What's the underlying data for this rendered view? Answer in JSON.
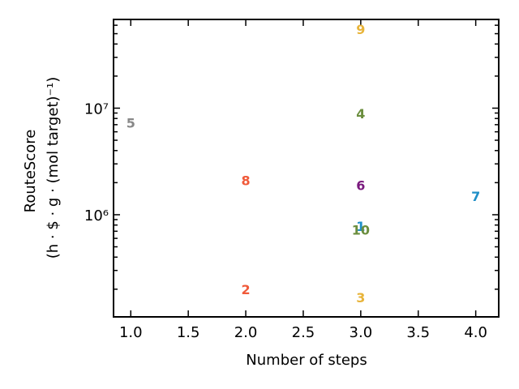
{
  "chart_data": {
    "type": "scatter",
    "title": "",
    "xlabel": "Number of steps",
    "ylabel": "RouteScore",
    "ylabel_line2": "(h · $ · g · (mol target)⁻¹)",
    "xlim": [
      0.85,
      4.2
    ],
    "ylim": [
      110000,
      68000000
    ],
    "yscale": "log",
    "grid": false,
    "x_ticks": [
      1.0,
      1.5,
      2.0,
      2.5,
      3.0,
      3.5,
      4.0
    ],
    "x_tick_labels": [
      "1.0",
      "1.5",
      "2.0",
      "2.5",
      "3.0",
      "3.5",
      "4.0"
    ],
    "y_major_ticks": [
      1000000,
      10000000
    ],
    "y_tick_labels": [
      "10⁶",
      "10⁷"
    ],
    "points": [
      {
        "label": "1",
        "x": 3,
        "y": 780000,
        "color": "#1f8fc7"
      },
      {
        "label": "2",
        "x": 2,
        "y": 200000,
        "color": "#f05a3a"
      },
      {
        "label": "3",
        "x": 3,
        "y": 168000,
        "color": "#e8b43a"
      },
      {
        "label": "4",
        "x": 3,
        "y": 8900000,
        "color": "#6b8e3e"
      },
      {
        "label": "5",
        "x": 1,
        "y": 7300000,
        "color": "#888888"
      },
      {
        "label": "6",
        "x": 3,
        "y": 1900000,
        "color": "#7a1a7e"
      },
      {
        "label": "7",
        "x": 4,
        "y": 1500000,
        "color": "#1f8fc7"
      },
      {
        "label": "8",
        "x": 2,
        "y": 2100000,
        "color": "#f05a3a"
      },
      {
        "label": "9",
        "x": 3,
        "y": 55000000,
        "color": "#e8b43a"
      },
      {
        "label": "10",
        "x": 3,
        "y": 720000,
        "color": "#6b8e3e"
      }
    ]
  }
}
